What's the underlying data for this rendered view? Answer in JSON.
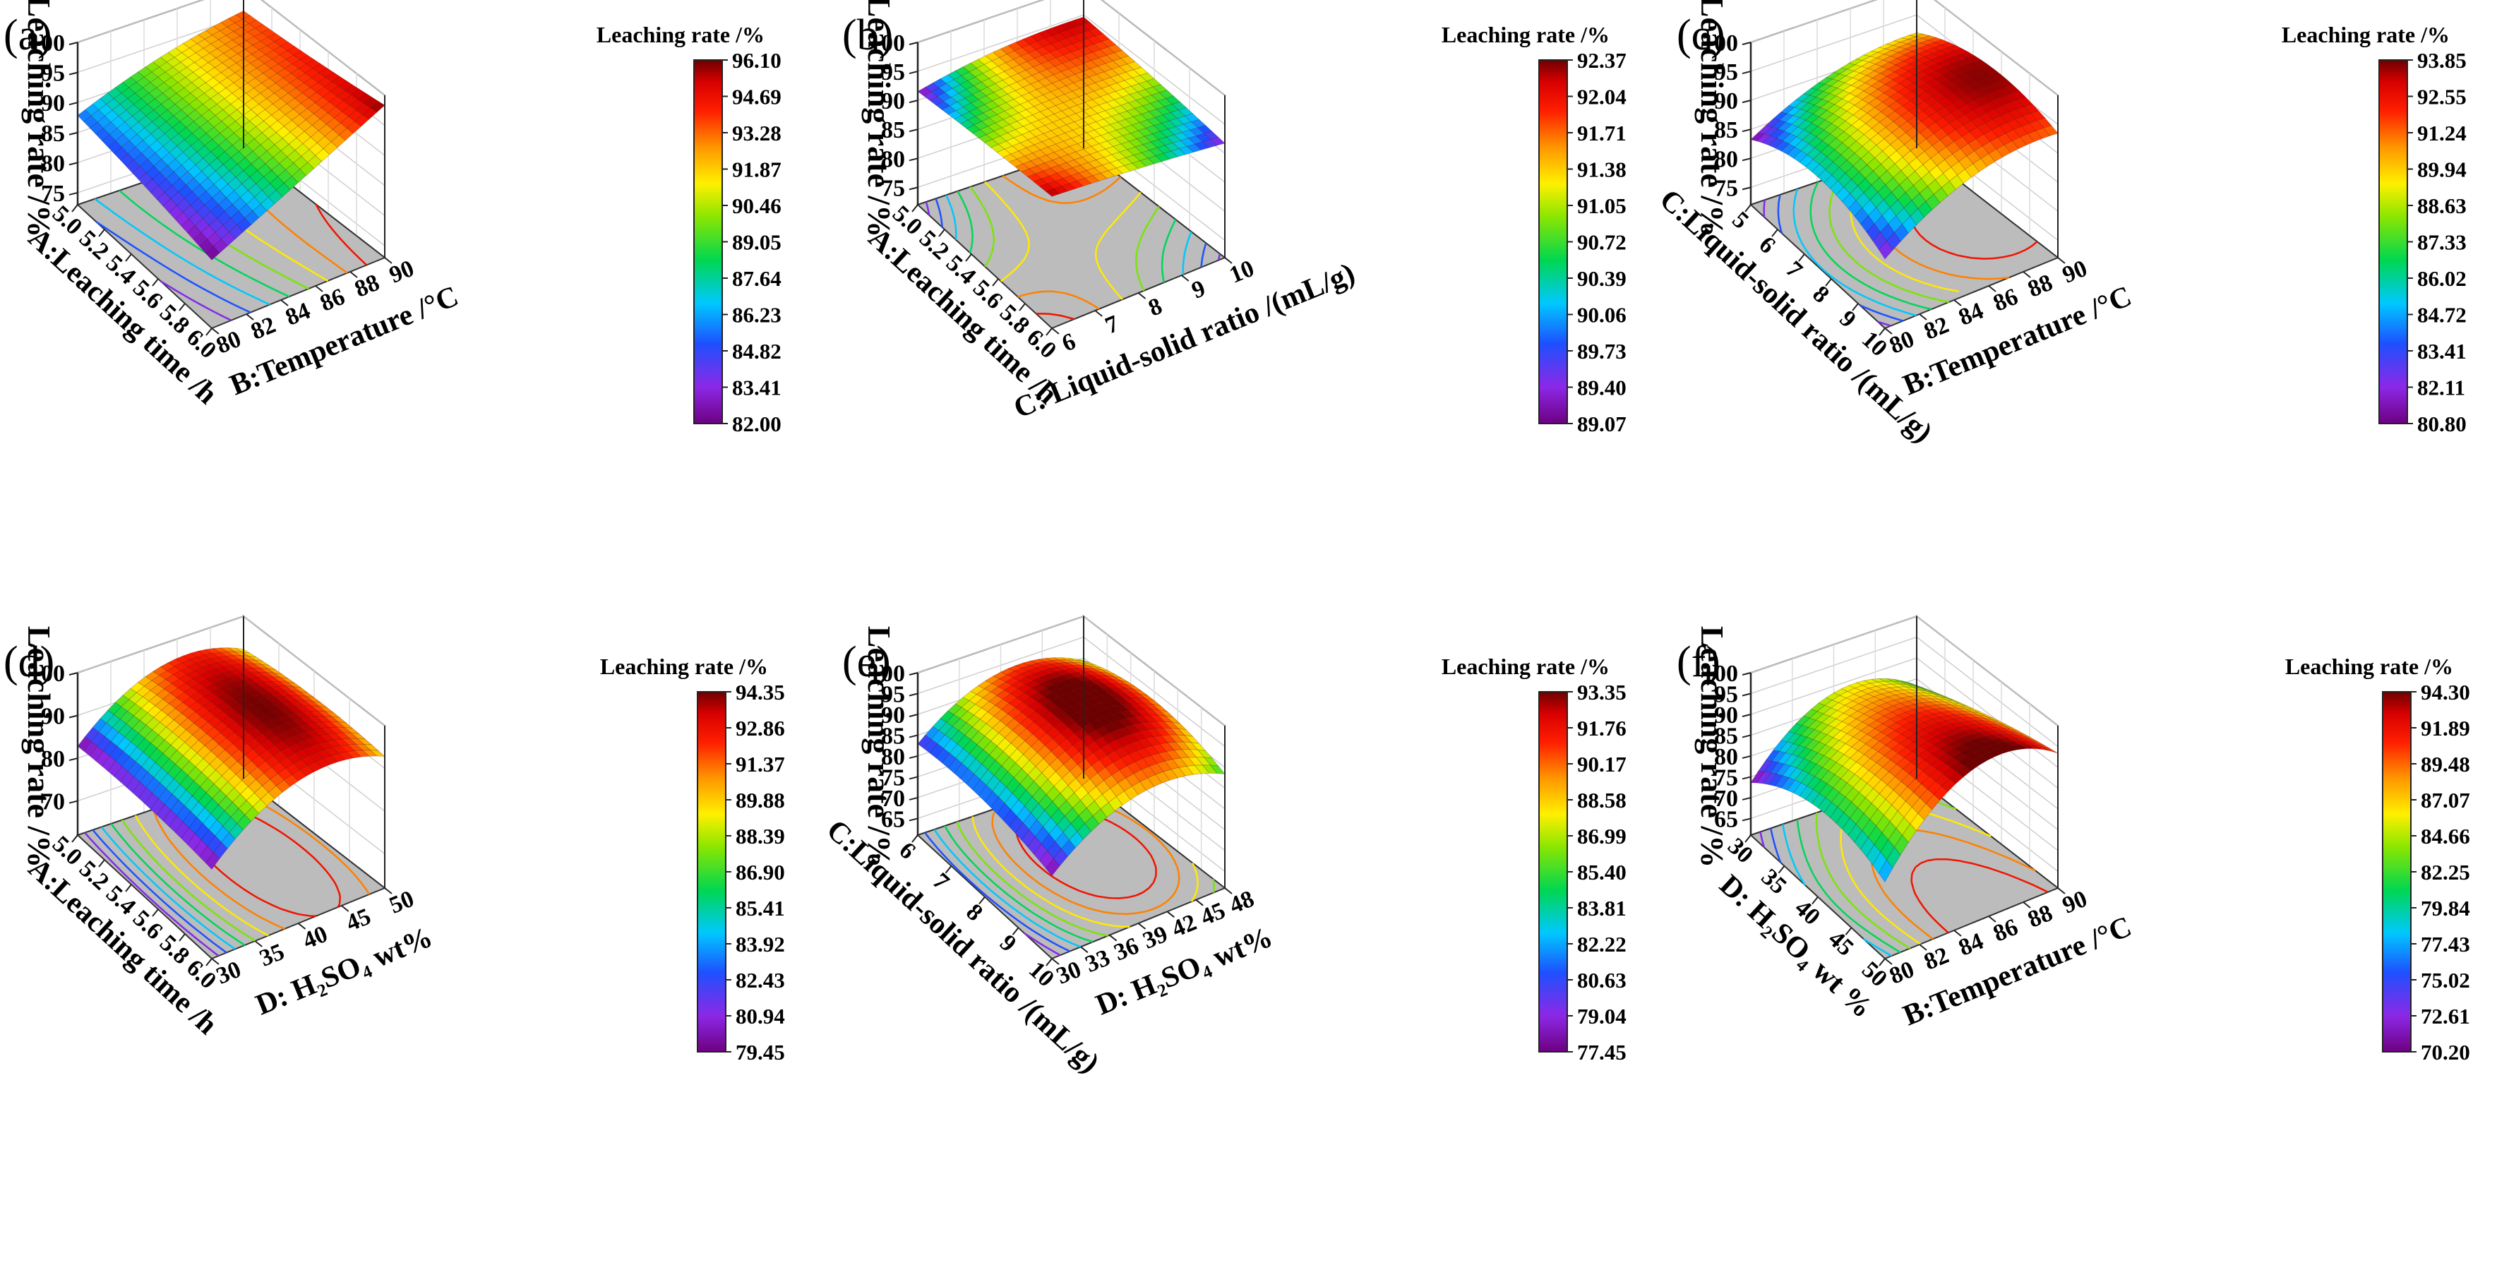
{
  "figure": {
    "panels": [
      {
        "letter": "(a)",
        "xlabel": "A:Leaching time /h",
        "ylabel": "B:Temperature /°C",
        "zlabel": "Leaching rate /%",
        "x_ticks": [
          "5.0",
          "5.2",
          "5.4",
          "5.6",
          "5.8",
          "6.0"
        ],
        "y_ticks": [
          "80",
          "82",
          "84",
          "86",
          "88",
          "90"
        ],
        "z_ticks": [
          "75",
          "80",
          "85",
          "90",
          "95",
          "100"
        ],
        "colorbar_title": "Leaching rate /%",
        "colorbar_ticks": [
          "96.10",
          "94.69",
          "93.28",
          "91.87",
          "90.46",
          "89.05",
          "87.64",
          "86.23",
          "84.82",
          "83.41",
          "82.00"
        ]
      },
      {
        "letter": "(b)",
        "xlabel": "A:Leaching time /h",
        "ylabel": "C: Liquid-solid ratio /(mL/g)",
        "zlabel": "Leaching rate /%",
        "x_ticks": [
          "5.0",
          "5.2",
          "5.4",
          "5.6",
          "5.8",
          "6.0"
        ],
        "y_ticks": [
          "6",
          "7",
          "8",
          "9",
          "10"
        ],
        "z_ticks": [
          "75",
          "80",
          "85",
          "90",
          "95",
          "100"
        ],
        "colorbar_title": "Leaching rate /%",
        "colorbar_ticks": [
          "92.37",
          "92.04",
          "91.71",
          "91.38",
          "91.05",
          "90.72",
          "90.39",
          "90.06",
          "89.73",
          "89.40",
          "89.07"
        ]
      },
      {
        "letter": "(c)",
        "xlabel": "C:Liquid-solid ratio /(mL/g)",
        "ylabel": "B:Temperature /°C",
        "zlabel": "Leaching rate /%",
        "x_ticks": [
          "5",
          "6",
          "7",
          "8",
          "9",
          "10"
        ],
        "y_ticks": [
          "80",
          "82",
          "84",
          "86",
          "88",
          "90"
        ],
        "z_ticks": [
          "75",
          "80",
          "85",
          "90",
          "95",
          "100"
        ],
        "colorbar_title": "Leaching rate /%",
        "colorbar_ticks": [
          "93.85",
          "92.55",
          "91.24",
          "89.94",
          "88.63",
          "87.33",
          "86.02",
          "84.72",
          "83.41",
          "82.11",
          "80.80"
        ]
      },
      {
        "letter": "(d)",
        "xlabel": "A:Leaching time /h",
        "ylabel": "D: H₂SO₄ wt%",
        "zlabel": "Leaching rate /%",
        "x_ticks": [
          "5.0",
          "5.2",
          "5.4",
          "5.6",
          "5.8",
          "6.0"
        ],
        "y_ticks": [
          "30",
          "35",
          "40",
          "45",
          "50"
        ],
        "z_ticks": [
          "70",
          "80",
          "90",
          "100"
        ],
        "colorbar_title": "Leaching rate  /%",
        "colorbar_ticks": [
          "94.35",
          "92.86",
          "91.37",
          "89.88",
          "88.39",
          "86.90",
          "85.41",
          "83.92",
          "82.43",
          "80.94",
          "79.45"
        ]
      },
      {
        "letter": "(e)",
        "xlabel": "C:Liquid-solid ratio /(mL/g)",
        "ylabel": "D: H₂SO₄ wt%",
        "zlabel": "Leaching rate /%",
        "x_ticks": [
          "6",
          "7",
          "8",
          "9",
          "10"
        ],
        "y_ticks": [
          "30",
          "33",
          "36",
          "39",
          "42",
          "45",
          "48"
        ],
        "z_ticks": [
          "65",
          "70",
          "75",
          "80",
          "85",
          "90",
          "95",
          "100"
        ],
        "colorbar_title": "Leaching rate  /%",
        "colorbar_ticks": [
          "93.35",
          "91.76",
          "90.17",
          "88.58",
          "86.99",
          "85.40",
          "83.81",
          "82.22",
          "80.63",
          "79.04",
          "77.45"
        ]
      },
      {
        "letter": "(f)",
        "xlabel": "D: H₂SO₄ wt %",
        "ylabel": "B:Temperature /°C",
        "zlabel": "Leaching rate /%",
        "x_ticks": [
          "30",
          "35",
          "40",
          "45",
          "50"
        ],
        "y_ticks": [
          "80",
          "82",
          "84",
          "86",
          "88",
          "90"
        ],
        "z_ticks": [
          "65",
          "70",
          "75",
          "80",
          "85",
          "90",
          "95",
          "100"
        ],
        "colorbar_title": "Leaching rate  /%",
        "colorbar_ticks": [
          "94.30",
          "91.89",
          "89.48",
          "87.07",
          "84.66",
          "82.25",
          "79.84",
          "77.43",
          "75.02",
          "72.61",
          "70.20"
        ]
      }
    ]
  },
  "chart_data": [
    {
      "type": "surface",
      "title": "(a)",
      "xlabel": "A:Leaching time /h",
      "ylabel": "B:Temperature /°C",
      "zlabel": "Leaching rate /%",
      "xlim": [
        5.0,
        6.0
      ],
      "ylim": [
        80,
        90
      ],
      "zlim": [
        73,
        100
      ],
      "color_range": [
        82.0,
        96.1
      ],
      "surface": {
        "x": [
          5.0,
          5.5,
          6.0
        ],
        "y": [
          80,
          85,
          90
        ],
        "z": [
          [
            85.5,
            90.5,
            93.5
          ],
          [
            84.0,
            90.5,
            94.5
          ],
          [
            82.0,
            89.0,
            96.0
          ]
        ]
      }
    },
    {
      "type": "surface",
      "title": "(b)",
      "xlabel": "A:Leaching time /h",
      "ylabel": "C: Liquid-solid ratio /(mL/g)",
      "zlabel": "Leaching rate /%",
      "xlim": [
        5.0,
        6.0
      ],
      "ylim": [
        6,
        10
      ],
      "zlim": [
        72,
        100
      ],
      "color_range": [
        89.07,
        92.37
      ],
      "surface": {
        "x": [
          5.0,
          5.5,
          6.0
        ],
        "y": [
          6,
          8,
          10
        ],
        "z": [
          [
            89.1,
            91.6,
            92.2
          ],
          [
            90.9,
            91.4,
            91.0
          ],
          [
            92.3,
            91.0,
            89.3
          ]
        ]
      }
    },
    {
      "type": "surface",
      "title": "(c)",
      "xlabel": "C:Liquid-solid ratio /(mL/g)",
      "ylabel": "B:Temperature /°C",
      "zlabel": "Leaching rate /%",
      "xlim": [
        5,
        10
      ],
      "ylim": [
        80,
        90
      ],
      "zlim": [
        72,
        100
      ],
      "color_range": [
        80.8,
        93.85
      ],
      "surface": {
        "x": [
          5,
          7.5,
          10
        ],
        "y": [
          80,
          85,
          90
        ],
        "z": [
          [
            80.8,
            87.5,
            89.5
          ],
          [
            85.0,
            91.8,
            93.5
          ],
          [
            81.5,
            89.5,
            91.0
          ]
        ]
      }
    },
    {
      "type": "surface",
      "title": "(d)",
      "xlabel": "A:Leaching time /h",
      "ylabel": "D: H₂SO₄ wt%",
      "zlabel": "Leaching rate /%",
      "xlim": [
        5.0,
        6.0
      ],
      "ylim": [
        30,
        50
      ],
      "zlim": [
        62,
        100
      ],
      "color_range": [
        79.45,
        94.35
      ],
      "surface": {
        "x": [
          5.0,
          5.5,
          6.0
        ],
        "y": [
          30,
          40,
          50
        ],
        "z": [
          [
            79.5,
            91.5,
            89.0
          ],
          [
            80.5,
            93.5,
            90.5
          ],
          [
            79.6,
            92.0,
            89.5
          ]
        ]
      }
    },
    {
      "type": "surface",
      "title": "(e)",
      "xlabel": "C:Liquid-solid ratio /(mL/g)",
      "ylabel": "D: H₂SO₄ wt%",
      "zlabel": "Leaching rate /%",
      "xlim": [
        6,
        10
      ],
      "ylim": [
        30,
        48
      ],
      "zlim": [
        61,
        100
      ],
      "color_range": [
        77.45,
        93.35
      ],
      "surface": {
        "x": [
          6,
          8,
          10
        ],
        "y": [
          30,
          39,
          48
        ],
        "z": [
          [
            79.5,
            90.0,
            86.0
          ],
          [
            80.5,
            93.3,
            89.5
          ],
          [
            77.5,
            88.5,
            85.0
          ]
        ]
      }
    },
    {
      "type": "surface",
      "title": "(f)",
      "xlabel": "D: H₂SO₄ wt %",
      "ylabel": "B:Temperature /°C",
      "zlabel": "Leaching rate /%",
      "xlim": [
        30,
        50
      ],
      "ylim": [
        80,
        90
      ],
      "zlim": [
        61,
        100
      ],
      "color_range": [
        70.2,
        94.3
      ],
      "surface": {
        "x": [
          30,
          40,
          50
        ],
        "y": [
          80,
          85,
          90
        ],
        "z": [
          [
            70.2,
            85.0,
            80.0
          ],
          [
            79.0,
            91.0,
            86.0
          ],
          [
            76.0,
            94.3,
            90.0
          ]
        ]
      }
    }
  ]
}
